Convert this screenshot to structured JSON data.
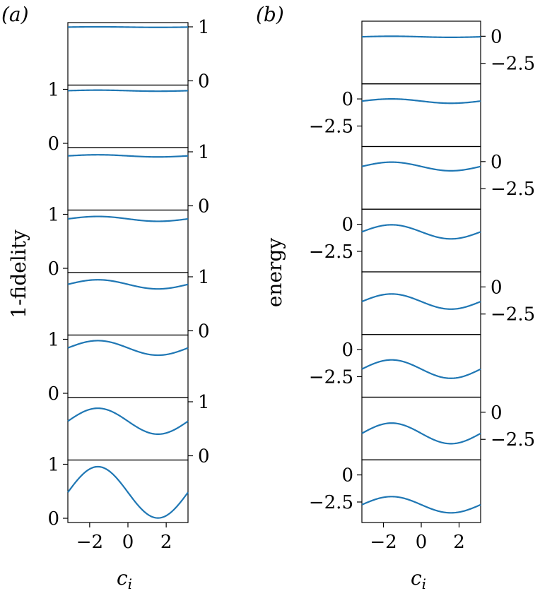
{
  "chart_data": [
    {
      "type": "line",
      "panel_label": "(a)",
      "ylabel": "1-fidelity",
      "xlabel_base": "c",
      "xlabel_sub": "i",
      "x_range": [
        -3.14,
        3.14
      ],
      "x_ticks": [
        -2,
        0,
        2
      ],
      "x_tick_labels": [
        "−2",
        "0",
        "2"
      ],
      "y_range": [
        0,
        1
      ],
      "y_ticks": [
        0,
        1
      ],
      "y_tick_labels": [
        "0",
        "1"
      ],
      "y_axis_sides": [
        "right",
        "left",
        "right",
        "left",
        "right",
        "left",
        "right",
        "left"
      ],
      "line_color": "#1f77b4",
      "series": [
        {
          "center": 0.995,
          "amplitude": 0.005
        },
        {
          "center": 0.975,
          "amplitude": 0.01
        },
        {
          "center": 0.925,
          "amplitude": 0.02
        },
        {
          "center": 0.915,
          "amplitude": 0.045
        },
        {
          "center": 0.86,
          "amplitude": 0.085
        },
        {
          "center": 0.84,
          "amplitude": 0.135
        },
        {
          "center": 0.64,
          "amplitude": 0.24
        },
        {
          "center": 0.48,
          "amplitude": 0.475
        }
      ]
    },
    {
      "type": "line",
      "panel_label": "(b)",
      "ylabel": "energy",
      "xlabel_base": "c",
      "xlabel_sub": "i",
      "x_range": [
        -3.14,
        3.14
      ],
      "x_ticks": [
        -2,
        0,
        2
      ],
      "x_tick_labels": [
        "−2",
        "0",
        "2"
      ],
      "y_range": [
        -4.0,
        1.0
      ],
      "y_ticks": [
        -2.5,
        0
      ],
      "y_tick_labels": [
        "−2.5",
        "0"
      ],
      "y_axis_sides": [
        "right",
        "left",
        "right",
        "left",
        "right",
        "left",
        "right",
        "left"
      ],
      "line_color": "#1f77b4",
      "series": [
        {
          "center": -0.05,
          "amplitude": 0.05
        },
        {
          "center": -0.2,
          "amplitude": 0.2
        },
        {
          "center": -0.45,
          "amplitude": 0.4
        },
        {
          "center": -0.7,
          "amplitude": 0.65
        },
        {
          "center": -1.35,
          "amplitude": 0.7
        },
        {
          "center": -1.8,
          "amplitude": 0.85
        },
        {
          "center": -1.95,
          "amplitude": 0.95
        },
        {
          "center": -2.75,
          "amplitude": 0.75
        }
      ]
    }
  ]
}
